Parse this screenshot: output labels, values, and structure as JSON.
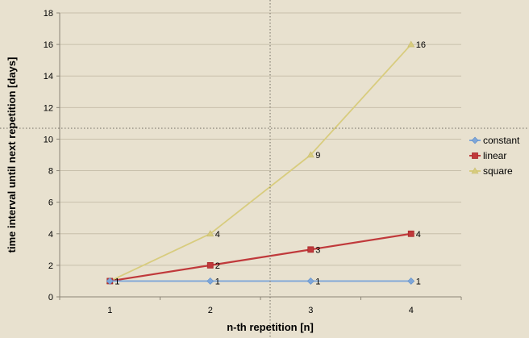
{
  "chart_data": {
    "type": "line",
    "title": "",
    "xlabel": "n-th repetition [n]",
    "ylabel": "time interval until next repetition [days]",
    "categories": [
      "1",
      "2",
      "3",
      "4"
    ],
    "ylim": [
      0,
      18
    ],
    "yticks": [
      "0",
      "2",
      "4",
      "6",
      "8",
      "10",
      "12",
      "14",
      "16",
      "18"
    ],
    "grid": true,
    "legend_position": "right",
    "series": [
      {
        "name": "constant",
        "values": [
          1,
          1,
          1,
          1
        ],
        "labels": [
          "1",
          "1",
          "1",
          "1"
        ],
        "color": "#7ea6d8",
        "marker": "diamond"
      },
      {
        "name": "linear",
        "values": [
          1,
          2,
          3,
          4
        ],
        "labels": [
          "",
          "2",
          "3",
          "4"
        ],
        "color": "#c0393b",
        "marker": "square"
      },
      {
        "name": "square",
        "values": [
          1,
          4,
          9,
          16
        ],
        "labels": [
          "",
          "4",
          "9",
          "16"
        ],
        "color": "#d8cc7e",
        "marker": "triangle"
      }
    ]
  },
  "colors": {
    "background": "#e8e1cf",
    "grid": "#c8c0ab",
    "axis": "#8b8577",
    "crosshair": "#6e6a60"
  }
}
